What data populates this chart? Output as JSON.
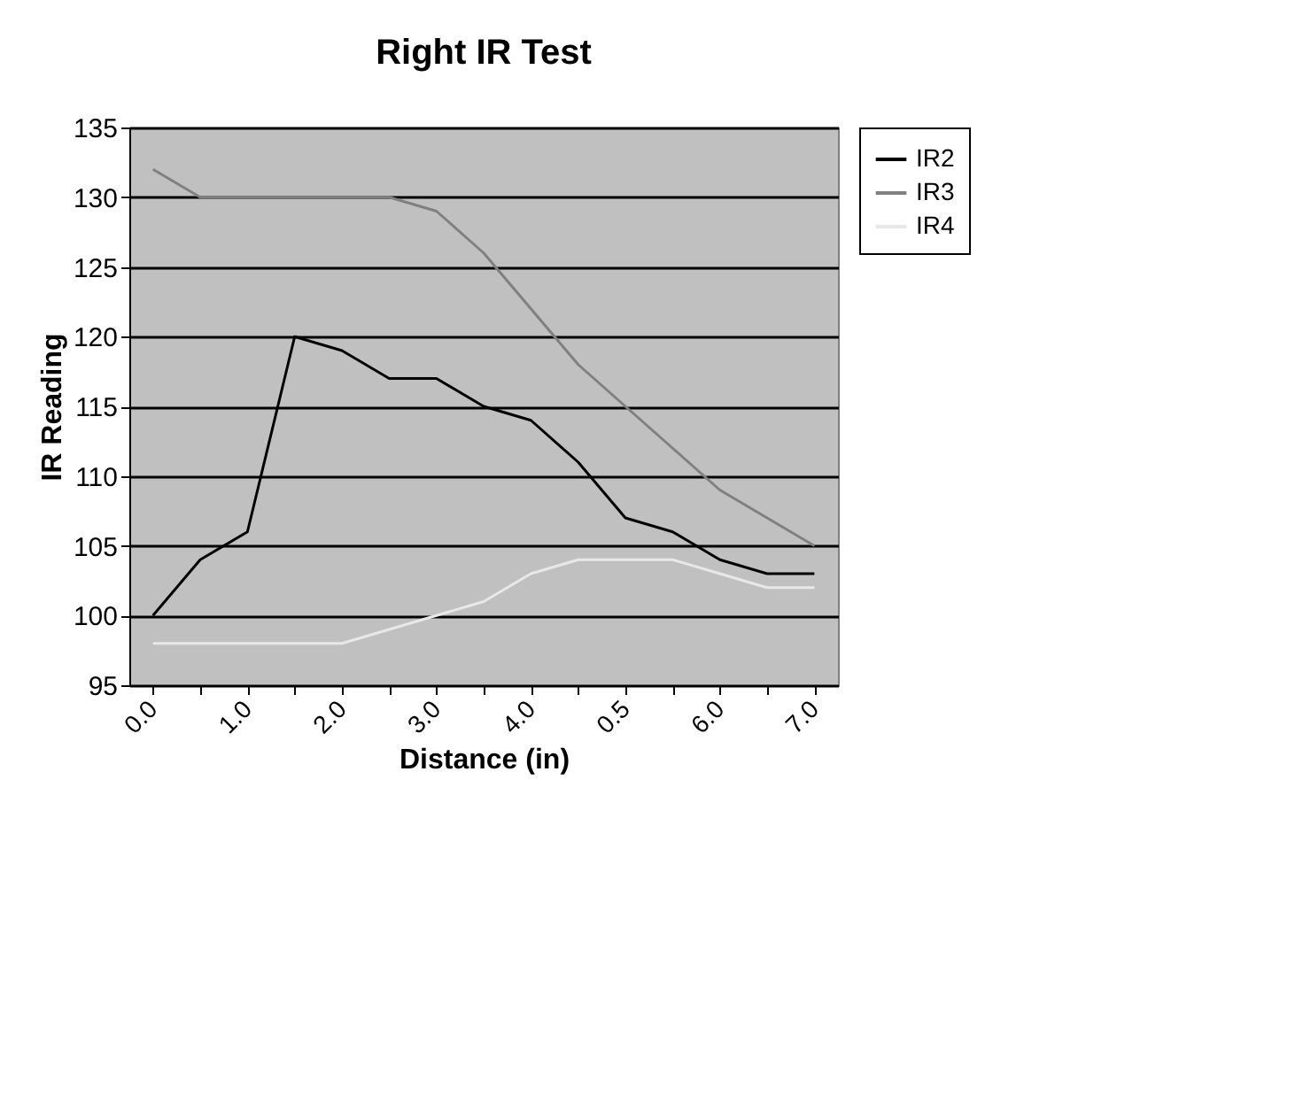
{
  "chart_data": {
    "type": "line",
    "title": "Right IR Test",
    "xlabel": "Distance (in)",
    "ylabel": "IR Reading",
    "categories": [
      "0.0",
      null,
      "1.0",
      null,
      "2.0",
      null,
      "3.0",
      null,
      "4.0",
      null,
      "0.5",
      null,
      "6.0",
      null,
      "7.0"
    ],
    "series": [
      {
        "name": "IR2",
        "color": "#000000",
        "values": [
          100,
          104,
          106,
          120,
          119,
          117,
          117,
          115,
          114,
          111,
          107,
          106,
          104,
          103,
          103
        ]
      },
      {
        "name": "IR3",
        "color": "#808080",
        "values": [
          132,
          130,
          130,
          130,
          130,
          130,
          129,
          126,
          122,
          118,
          115,
          112,
          109,
          107,
          105
        ]
      },
      {
        "name": "IR4",
        "color": "#e8e8e8",
        "values": [
          98,
          98,
          98,
          98,
          98,
          99,
          100,
          101,
          103,
          104,
          104,
          104,
          103,
          102,
          102
        ]
      }
    ],
    "ylim": [
      95,
      135
    ],
    "yticks": [
      95,
      100,
      105,
      110,
      115,
      120,
      125,
      130,
      135
    ],
    "grid": "y",
    "legend": "right",
    "marker": "none",
    "line_style": "solid"
  }
}
